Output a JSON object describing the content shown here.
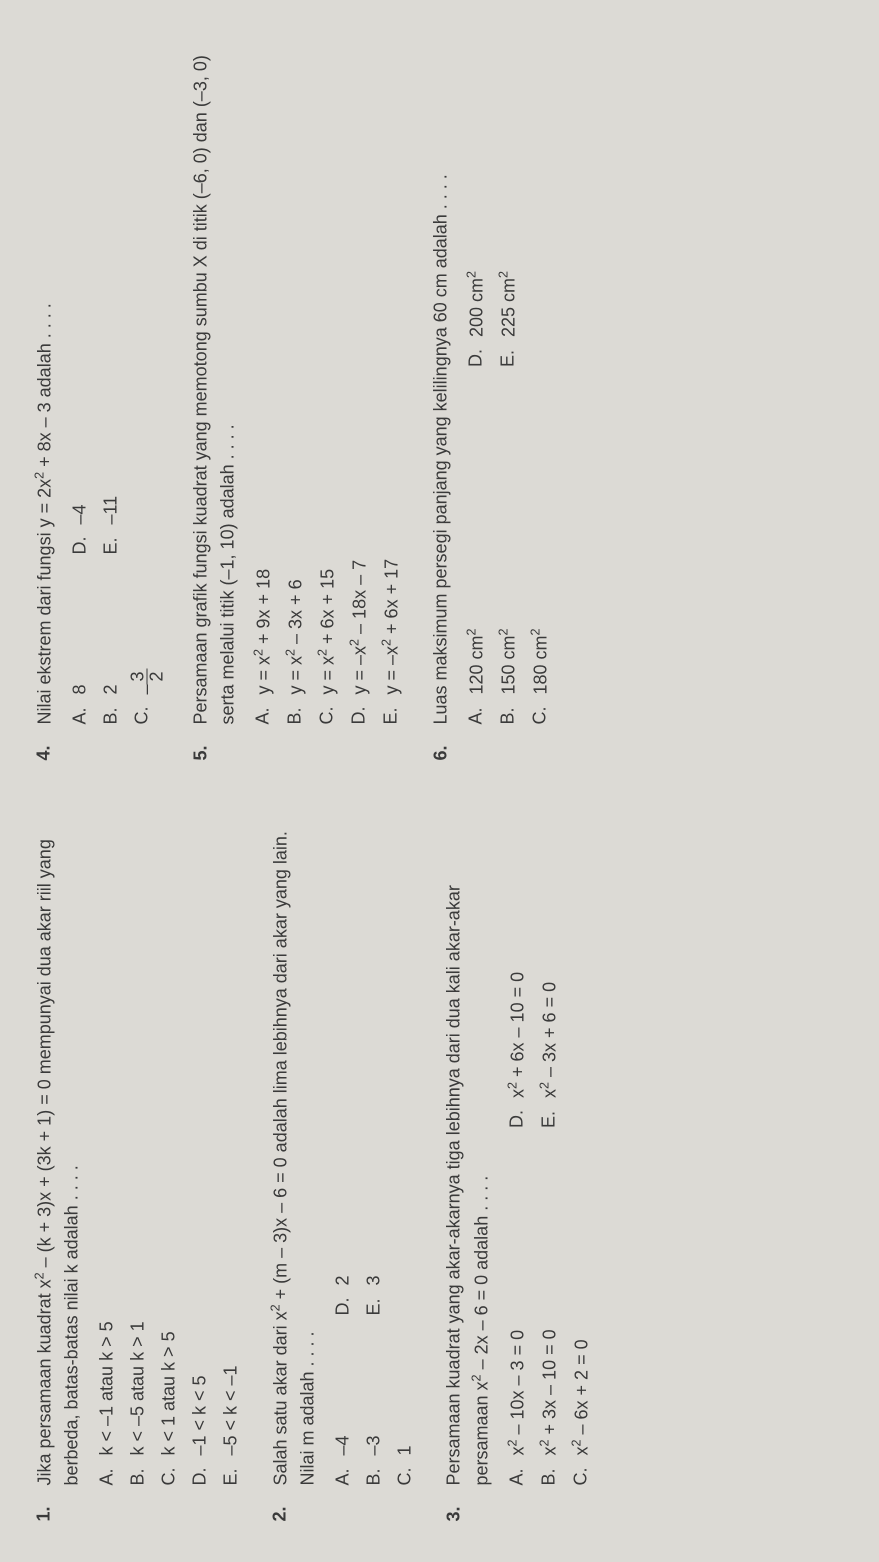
{
  "q1": {
    "num": "1.",
    "text_parts": [
      "Jika persamaan kuadrat x",
      " – (k + 3)x + (3k + 1) = 0 mempunyai dua akar riil yang berbeda, batas-batas nilai k adalah . . . ."
    ],
    "options": {
      "A": "k < –1 atau k > 5",
      "B": "k < –5 atau k > 1",
      "C": "k < 1 atau k > 5",
      "D": "–1 < k < 5",
      "E": "–5 < k < –1"
    }
  },
  "q2": {
    "num": "2.",
    "text_parts": [
      "Salah satu akar dari x",
      " + (m – 3)x – 6 = 0 adalah lima lebihnya dari akar yang lain. Nilai m adalah . . . ."
    ],
    "options": {
      "A": "–4",
      "B": "–3",
      "C": "1",
      "D": "2",
      "E": "3"
    }
  },
  "q3": {
    "num": "3.",
    "text_parts_a": [
      "Persamaan kuadrat yang akar-akarnya tiga lebihnya dari dua kali akar-akar persamaan x",
      " – 2x – 6 = 0 adalah . . . ."
    ],
    "options": {
      "A": {
        "pre": "x",
        "post": " – 10x – 3 = 0"
      },
      "B": {
        "pre": "x",
        "post": " + 3x – 10 = 0"
      },
      "C": {
        "pre": "x",
        "post": " – 6x + 2 = 0"
      },
      "D": {
        "pre": "x",
        "post": " + 6x – 10 = 0"
      },
      "E": {
        "pre": "x",
        "post": " – 3x + 6 = 0"
      }
    }
  },
  "q4": {
    "num": "4.",
    "text_parts": [
      "Nilai ekstrem dari fungsi y = 2x",
      " + 8x – 3 adalah . . . ."
    ],
    "options": {
      "A": "8",
      "B": "2",
      "C_num": "3",
      "C_den": "2",
      "C_prefix": "–",
      "D": "–4",
      "E": "–11"
    }
  },
  "q5": {
    "num": "5.",
    "text": "Persamaan grafik fungsi kuadrat yang memotong sumbu X di titik (–6, 0) dan (–3, 0) serta melalui titik (–1, 10) adalah . . . .",
    "options": {
      "A": {
        "pre": "y = x",
        "post": " + 9x + 18"
      },
      "B": {
        "pre": "y = x",
        "post": " – 3x + 6"
      },
      "C": {
        "pre": "y = x",
        "post": " + 6x + 15"
      },
      "D": {
        "pre": "y = –x",
        "post": " – 18x – 7"
      },
      "E": {
        "pre": "y = –x",
        "post": " + 6x + 17"
      }
    }
  },
  "q6": {
    "num": "6.",
    "text": "Luas maksimum persegi panjang yang kelilingnya 60 cm adalah . . . .",
    "options": {
      "A": {
        "val": "120 cm"
      },
      "B": {
        "val": "150 cm"
      },
      "C": {
        "val": "180 cm"
      },
      "D": {
        "val": "200 cm"
      },
      "E": {
        "val": "225 cm"
      }
    }
  },
  "labels": {
    "A": "A.",
    "B": "B.",
    "C": "C.",
    "D": "D.",
    "E": "E."
  }
}
